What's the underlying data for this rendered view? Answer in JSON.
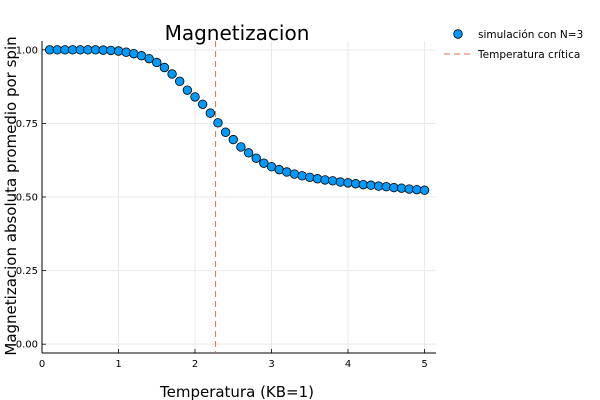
{
  "chart_data": {
    "type": "scatter",
    "title": "Magnetizacion",
    "xlabel": "Temperatura (KB=1)",
    "ylabel": "Magnetizacion absoluta promedio por spin",
    "xlim": [
      0,
      5.15
    ],
    "ylim": [
      -0.03,
      1.03
    ],
    "xticks": [
      0,
      1,
      2,
      3,
      4,
      5
    ],
    "xtick_labels": [
      "0",
      "1",
      "2",
      "3",
      "4",
      "5"
    ],
    "yticks": [
      0.0,
      0.25,
      0.5,
      0.75,
      1.0
    ],
    "ytick_labels": [
      "0.00",
      "0.25",
      "0.50",
      "0.75",
      "1.00"
    ],
    "grid": true,
    "legend_position": "outside-top-right",
    "series": [
      {
        "name": "simulación con N=3",
        "kind": "markers",
        "color": "#009AFA",
        "x": [
          0.1,
          0.2,
          0.3,
          0.4,
          0.5,
          0.6,
          0.7,
          0.8,
          0.9,
          1.0,
          1.1,
          1.2,
          1.3,
          1.4,
          1.5,
          1.6,
          1.7,
          1.8,
          1.9,
          2.0,
          2.1,
          2.2,
          2.3,
          2.4,
          2.5,
          2.6,
          2.7,
          2.8,
          2.9,
          3.0,
          3.1,
          3.2,
          3.3,
          3.4,
          3.5,
          3.6,
          3.7,
          3.8,
          3.9,
          4.0,
          4.1,
          4.2,
          4.3,
          4.4,
          4.5,
          4.6,
          4.7,
          4.8,
          4.9,
          5.0
        ],
        "y": [
          1.0,
          1.0,
          1.0,
          1.0,
          1.0,
          1.0,
          1.0,
          0.999,
          0.998,
          0.996,
          0.992,
          0.987,
          0.98,
          0.97,
          0.957,
          0.94,
          0.918,
          0.893,
          0.863,
          0.84,
          0.815,
          0.785,
          0.752,
          0.72,
          0.695,
          0.67,
          0.65,
          0.632,
          0.615,
          0.603,
          0.593,
          0.585,
          0.578,
          0.572,
          0.567,
          0.562,
          0.558,
          0.555,
          0.551,
          0.548,
          0.545,
          0.542,
          0.54,
          0.537,
          0.535,
          0.532,
          0.53,
          0.527,
          0.525,
          0.523
        ]
      },
      {
        "name": "Temperatura crítica",
        "kind": "vline",
        "color": "#E26F46",
        "x": 2.269
      }
    ]
  }
}
